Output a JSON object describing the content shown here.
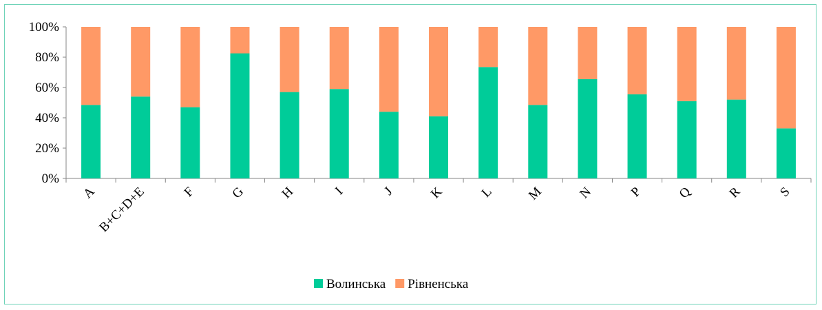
{
  "chart_data": {
    "type": "bar",
    "stacked": true,
    "percent_stacked": true,
    "categories": [
      "A",
      "B+C+D+E",
      "F",
      "G",
      "H",
      "I",
      "J",
      "K",
      "L",
      "M",
      "N",
      "P",
      "Q",
      "R",
      "S"
    ],
    "series": [
      {
        "name": "Волинська",
        "color": "#00cc99",
        "values": [
          48.5,
          54,
          47,
          82.5,
          57,
          59,
          44,
          41,
          73.5,
          48.5,
          65.5,
          55.5,
          51,
          52,
          33
        ]
      },
      {
        "name": "Рівненська",
        "color": "#ff9966",
        "values": [
          51.5,
          46,
          53,
          17.5,
          43,
          41,
          56,
          59,
          26.5,
          51.5,
          34.5,
          44.5,
          49,
          48,
          67
        ]
      }
    ],
    "y_ticks": [
      "0%",
      "20%",
      "40%",
      "60%",
      "80%",
      "100%"
    ],
    "ylim": [
      0,
      100
    ],
    "grid": false,
    "legend_position": "bottom",
    "border_color": "#6fd3b8"
  }
}
